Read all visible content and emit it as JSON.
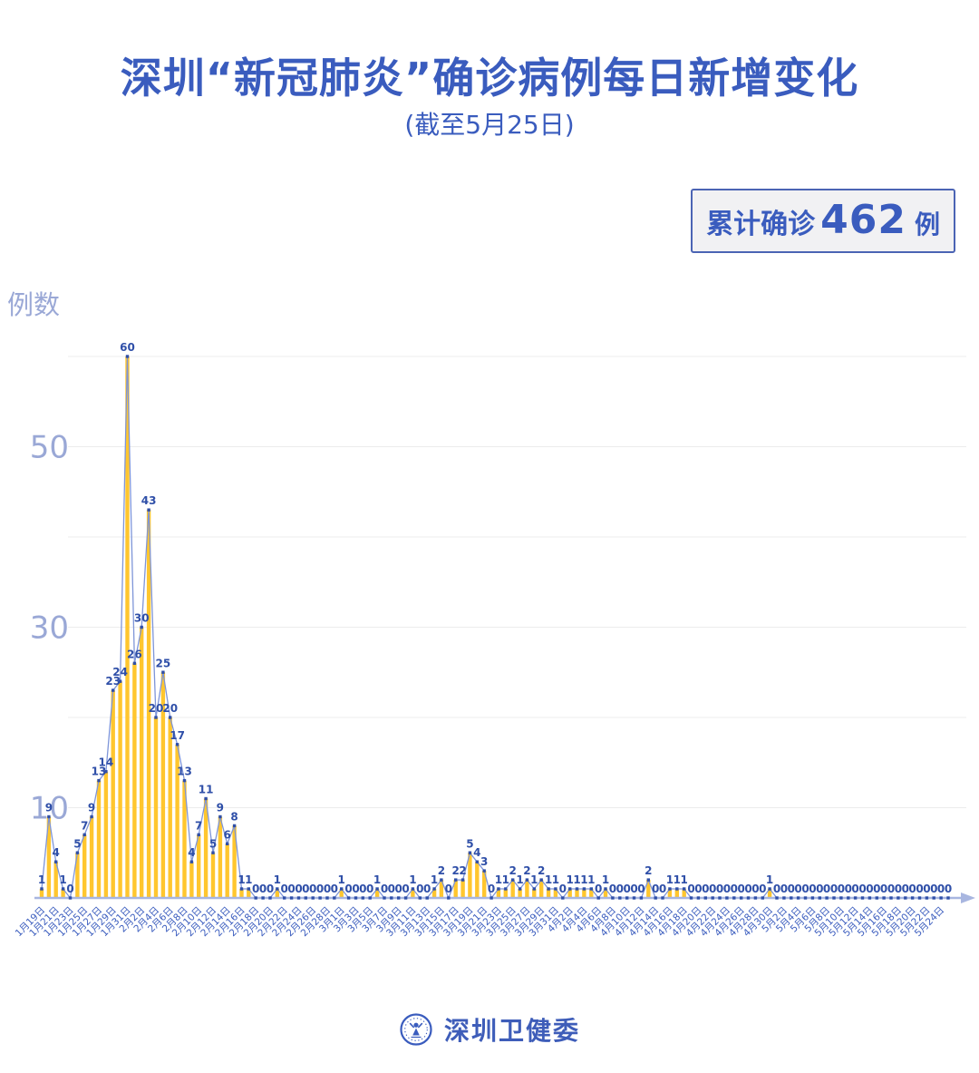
{
  "page": {
    "title": "深圳“新冠肺炎”确诊病例每日新增变化",
    "subtitle": "(截至5月25日)"
  },
  "badge": {
    "prefix": "累计确诊",
    "value": "462",
    "suffix": "例"
  },
  "footer": {
    "org": "深圳卫健委",
    "logo_icon": "shenzhen-health-commission-emblem-icon"
  },
  "chart_data": {
    "type": "bar",
    "title": "深圳“新冠肺炎”确诊病例每日新增变化",
    "subtitle": "(截至5月25日)",
    "xlabel": "",
    "ylabel": "例数",
    "ylim": [
      0,
      62
    ],
    "yticks": [
      10,
      30,
      50
    ],
    "gridline_values": [
      10,
      20,
      30,
      40,
      50,
      60
    ],
    "grid": "horizontal-only",
    "legend_position": "none",
    "annotation_total": 462,
    "points_per_tick": 2,
    "x_tick_labels": [
      "1月19日",
      "1月21日",
      "1月23日",
      "1月25日",
      "1月27日",
      "1月29日",
      "1月31日",
      "2月2日",
      "2月4日",
      "2月6日",
      "2月8日",
      "2月10日",
      "2月12日",
      "2月14日",
      "2月16日",
      "2月18日",
      "2月20日",
      "2月22日",
      "2月24日",
      "2月26日",
      "2月28日",
      "3月1日",
      "3月3日",
      "3月5日",
      "3月7日",
      "3月9日",
      "3月11日",
      "3月13日",
      "3月15日",
      "3月17日",
      "3月19日",
      "3月21日",
      "3月23日",
      "3月25日",
      "3月27日",
      "3月29日",
      "3月31日",
      "4月2日",
      "4月4日",
      "4月6日",
      "4月8日",
      "4月10日",
      "4月12日",
      "4月14日",
      "4月16日",
      "4月18日",
      "4月20日",
      "4月22日",
      "4月24日",
      "4月26日",
      "4月28日",
      "4月30日",
      "5月2日",
      "5月4日",
      "5月6日",
      "5月8日",
      "5月10日",
      "5月12日",
      "5月14日",
      "5月16日",
      "5月18日",
      "5月20日",
      "5月22日",
      "5月24日"
    ],
    "values": [
      1,
      9,
      4,
      1,
      0,
      5,
      7,
      9,
      13,
      14,
      23,
      24,
      60,
      26,
      30,
      43,
      20,
      25,
      20,
      17,
      13,
      4,
      7,
      11,
      5,
      9,
      6,
      8,
      1,
      1,
      0,
      0,
      0,
      1,
      0,
      0,
      0,
      0,
      0,
      0,
      0,
      0,
      1,
      0,
      0,
      0,
      0,
      1,
      0,
      0,
      0,
      0,
      1,
      0,
      0,
      1,
      2,
      0,
      2,
      2,
      5,
      4,
      3,
      0,
      1,
      1,
      2,
      1,
      2,
      1,
      2,
      1,
      1,
      0,
      1,
      1,
      1,
      1,
      0,
      1,
      0,
      0,
      0,
      0,
      0,
      2,
      0,
      0,
      1,
      1,
      1,
      0,
      0,
      0,
      0,
      0,
      0,
      0,
      0,
      0,
      0,
      0,
      1,
      0,
      0,
      0,
      0,
      0,
      0,
      0,
      0,
      0,
      0,
      0,
      0,
      0,
      0,
      0,
      0,
      0,
      0,
      0,
      0,
      0,
      0,
      0,
      0,
      0
    ],
    "colors": {
      "bar": "#ffc62e",
      "line": "#7e95d8",
      "point": "#2f4fa8",
      "value_label": "#2f4fa8",
      "tick_text": "#3a5cbe",
      "axis_text": "#9aa8d6",
      "gridline": "#ececec",
      "axis_line": "#a8b6e0",
      "title_text": "#3a5cbe"
    }
  }
}
